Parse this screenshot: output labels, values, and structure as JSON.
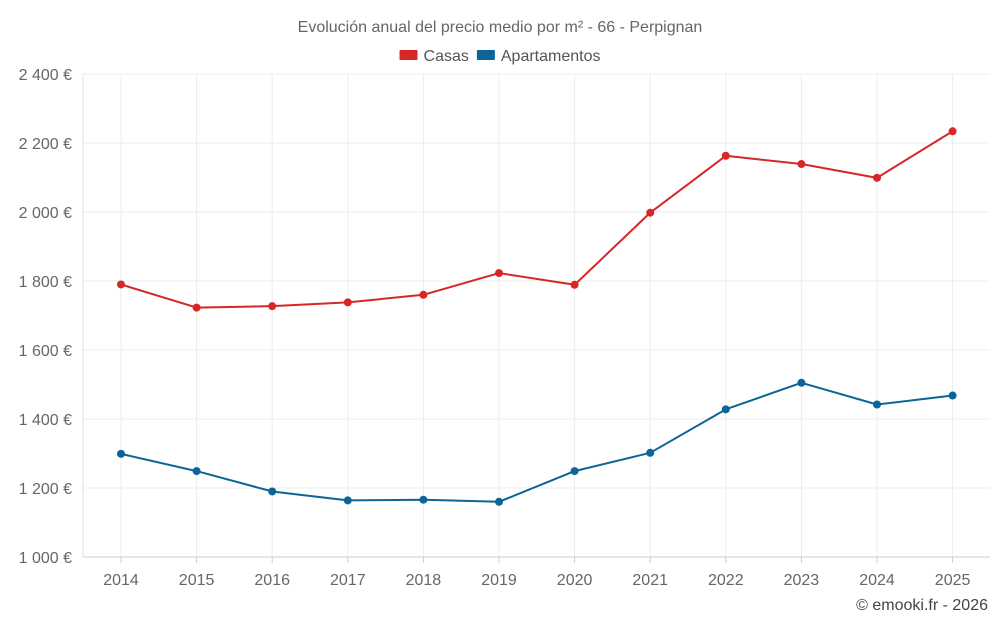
{
  "chart_data": {
    "type": "line",
    "title": "Evolución anual del precio medio por m² - 66 - Perpignan",
    "categories": [
      "2014",
      "2015",
      "2016",
      "2017",
      "2018",
      "2019",
      "2020",
      "2021",
      "2022",
      "2023",
      "2024",
      "2025"
    ],
    "series": [
      {
        "name": "Casas",
        "color": "#d62728",
        "values": [
          1790,
          1723,
          1727,
          1738,
          1760,
          1823,
          1789,
          1998,
          2163,
          2139,
          2099,
          2234
        ]
      },
      {
        "name": "Apartamentos",
        "color": "#0b6597",
        "values": [
          1299,
          1249,
          1190,
          1164,
          1166,
          1160,
          1249,
          1302,
          1428,
          1505,
          1442,
          1468
        ]
      }
    ],
    "ylim": [
      1000,
      2400
    ],
    "yticks": [
      1000,
      1200,
      1400,
      1600,
      1800,
      2000,
      2200,
      2400
    ],
    "ytick_labels": [
      "1 000 €",
      "1 200 €",
      "1 400 €",
      "1 600 €",
      "1 800 €",
      "2 000 €",
      "2 200 €",
      "2 400 €"
    ],
    "grid": true,
    "legend": "top-center",
    "xlabel": "",
    "ylabel": ""
  },
  "credit": "© emooki.fr - 2026"
}
